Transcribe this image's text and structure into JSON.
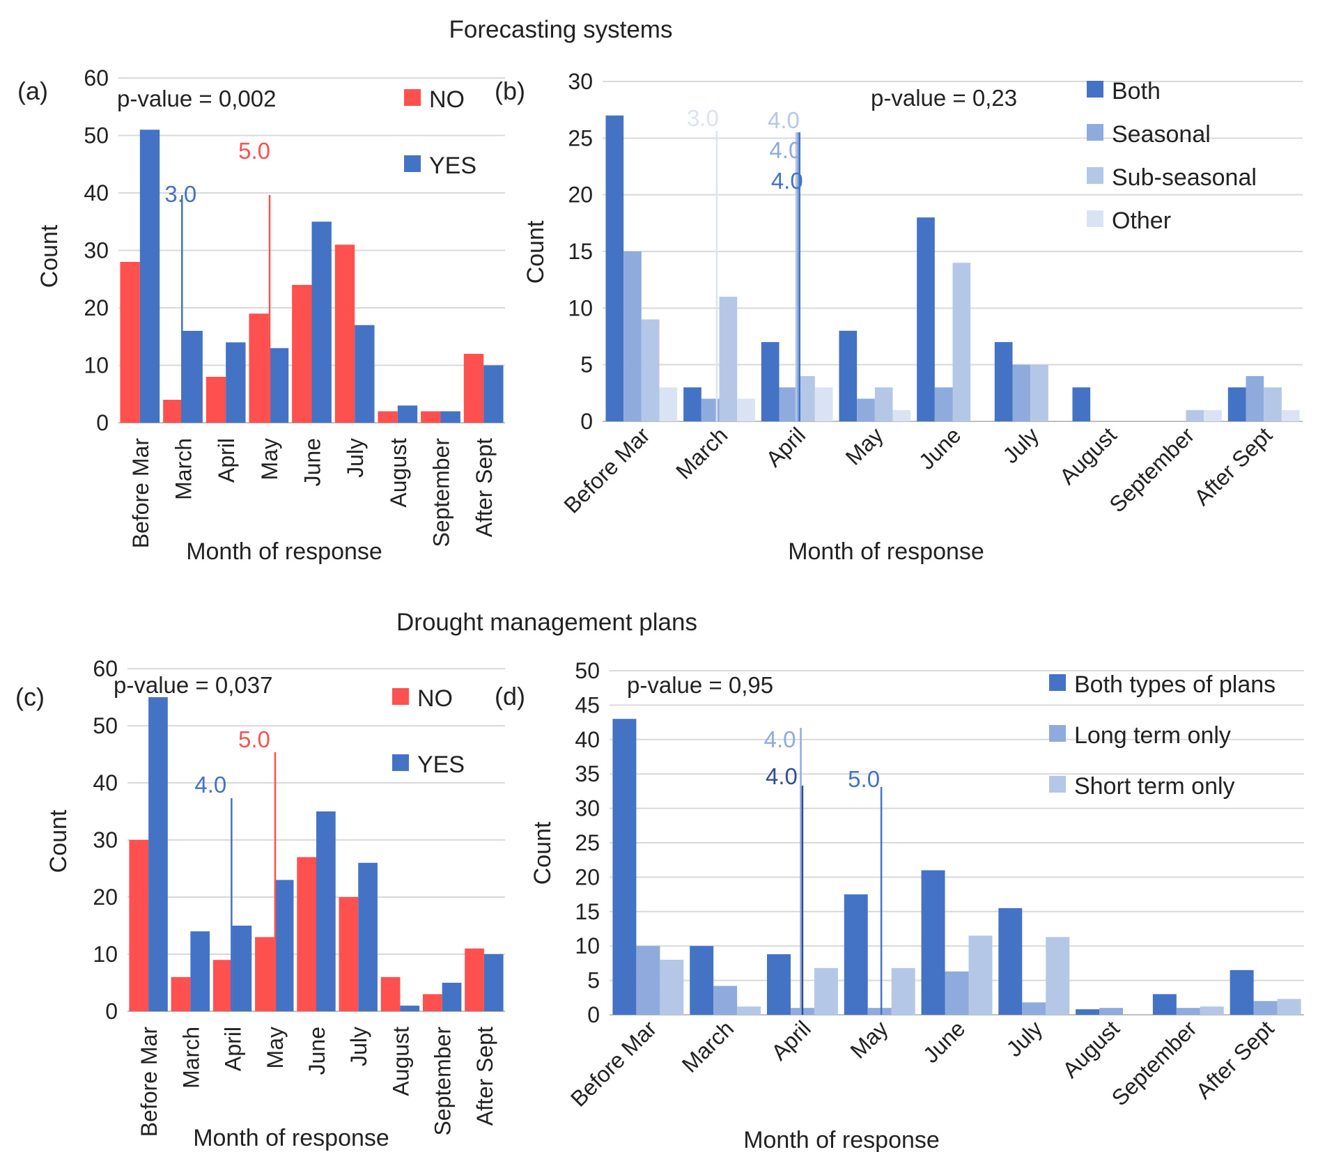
{
  "section_titles": {
    "top": "Forecasting systems",
    "bottom": "Drought management plans"
  },
  "chart_data": [
    {
      "panel": "(a)",
      "type": "bar",
      "p_value": "p-value = 0,002",
      "categories": [
        "Before Mar",
        "March",
        "April",
        "May",
        "June",
        "July",
        "August",
        "September",
        "After Sept"
      ],
      "series": [
        {
          "name": "NO",
          "color": "#ff5050",
          "values": [
            28,
            4,
            8,
            19,
            24,
            31,
            2,
            2,
            12
          ]
        },
        {
          "name": "YES",
          "color": "#4472c4",
          "values": [
            51,
            16,
            14,
            13,
            35,
            17,
            3,
            2,
            10
          ]
        }
      ],
      "ylabel": "Count",
      "xlabel": "Month of response",
      "ylim": [
        0,
        60
      ],
      "yticks": [
        0,
        10,
        20,
        30,
        40,
        50,
        60
      ],
      "grid": true,
      "legend": "top-right",
      "median_markers": [
        {
          "label": "3.0",
          "color": "#4472c4",
          "x": 1.5
        },
        {
          "label": "5.0",
          "color": "#ff5050",
          "x": 3.5
        }
      ]
    },
    {
      "panel": "(b)",
      "type": "bar",
      "p_value": "p-value = 0,23",
      "categories": [
        "Before Mar",
        "March",
        "April",
        "May",
        "June",
        "July",
        "August",
        "September",
        "After Sept"
      ],
      "series": [
        {
          "name": "Both",
          "color": "#4472c4",
          "values": [
            27,
            3,
            7,
            8,
            18,
            7,
            3,
            0,
            3
          ]
        },
        {
          "name": "Seasonal",
          "color": "#8faadc",
          "values": [
            15,
            2,
            3,
            2,
            3,
            5,
            0,
            0,
            4
          ]
        },
        {
          "name": "Sub-seasonal",
          "color": "#b4c7e7",
          "values": [
            9,
            11,
            4,
            3,
            14,
            5,
            0,
            1,
            3
          ]
        },
        {
          "name": "Other",
          "color": "#dae3f3",
          "values": [
            3,
            2,
            3,
            1,
            0,
            0,
            0,
            1,
            1
          ]
        }
      ],
      "ylabel": "Count",
      "xlabel": "Month of response",
      "ylim": [
        0,
        30
      ],
      "yticks": [
        0,
        5,
        10,
        15,
        20,
        25,
        30
      ],
      "grid": true,
      "legend": "top-right",
      "median_markers": [
        {
          "label": "3.0",
          "color": "#dae3f3",
          "x": 1.5
        },
        {
          "label": "4.0",
          "color": "#b4c7e7",
          "x": 2.5
        },
        {
          "label": "4.0",
          "color": "#8faadc",
          "x": 2.5
        },
        {
          "label": "4.0",
          "color": "#4472c4",
          "x": 2.5
        }
      ]
    },
    {
      "panel": "(c)",
      "type": "bar",
      "p_value": "p-value = 0,037",
      "categories": [
        "Before Mar",
        "March",
        "April",
        "May",
        "June",
        "July",
        "August",
        "September",
        "After Sept"
      ],
      "series": [
        {
          "name": "NO",
          "color": "#ff5050",
          "values": [
            30,
            6,
            9,
            13,
            27,
            20,
            6,
            3,
            11
          ]
        },
        {
          "name": "YES",
          "color": "#4472c4",
          "values": [
            55,
            14,
            15,
            23,
            35,
            26,
            1,
            5,
            10
          ]
        }
      ],
      "ylabel": "Count",
      "xlabel": "Month of response",
      "ylim": [
        0,
        60
      ],
      "yticks": [
        0,
        10,
        20,
        30,
        40,
        50,
        60
      ],
      "grid": true,
      "legend": "top-right",
      "median_markers": [
        {
          "label": "4.0",
          "color": "#4472c4",
          "x": 2.5
        },
        {
          "label": "5.0",
          "color": "#ff5050",
          "x": 3.5
        }
      ]
    },
    {
      "panel": "(d)",
      "type": "bar",
      "p_value": "p-value = 0,95",
      "categories": [
        "Before Mar",
        "March",
        "April",
        "May",
        "June",
        "July",
        "August",
        "September",
        "After Sept"
      ],
      "series": [
        {
          "name": "Both types of plans",
          "color": "#4472c4",
          "values": [
            43,
            10,
            8.8,
            17.5,
            21,
            15.5,
            0.8,
            3,
            6.5
          ]
        },
        {
          "name": "Long term only",
          "color": "#8faadc",
          "values": [
            10,
            4.2,
            1,
            1,
            6.3,
            1.8,
            1,
            1,
            2
          ]
        },
        {
          "name": "Short term only",
          "color": "#b4c7e7",
          "values": [
            8,
            1.2,
            6.8,
            6.8,
            11.5,
            11.3,
            0,
            1.2,
            2.3
          ]
        }
      ],
      "ylabel": "Count",
      "xlabel": "Month of response",
      "ylim": [
        0,
        50
      ],
      "yticks": [
        0,
        5,
        10,
        15,
        20,
        25,
        30,
        35,
        40,
        45,
        50
      ],
      "grid": true,
      "legend": "top-right",
      "median_markers": [
        {
          "label": "4.0",
          "color": "#8faadc",
          "x": 2.5
        },
        {
          "label": "4.0",
          "color": "#2f4f8f",
          "x": 2.5
        },
        {
          "label": "5.0",
          "color": "#4472c4",
          "x": 3.5
        }
      ]
    }
  ]
}
